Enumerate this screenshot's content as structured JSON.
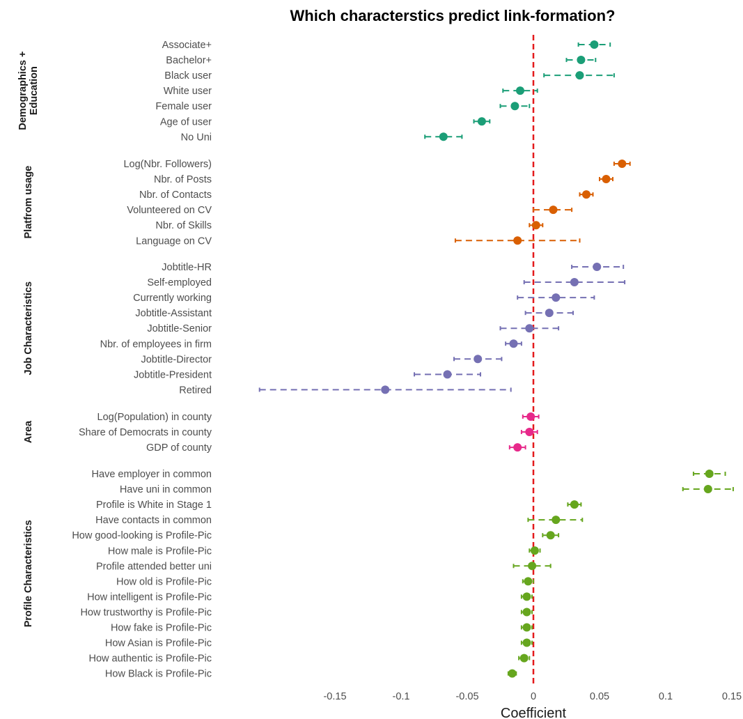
{
  "chart_data": {
    "type": "scatter",
    "subtype": "coefficient-plot-with-error-bars",
    "title": "Which characterstics predict link-formation?",
    "xlabel": "Coefficient",
    "xlim": [
      -0.2,
      0.16
    ],
    "x_ticks": [
      -0.15,
      -0.1,
      -0.05,
      0,
      0.05,
      0.1,
      0.15
    ],
    "x_tick_labels": [
      "-0.15",
      "-0.1",
      "-0.05",
      "0",
      "0.05",
      "0.1",
      "0.15"
    ],
    "reference_line": {
      "x": 0,
      "color": "#e31a1c",
      "style": "dashed"
    },
    "grid": false,
    "legend": "none",
    "groups": [
      {
        "name": "Demographics +\nEducation",
        "color": "#1b9e77",
        "items": [
          {
            "label": "Associate+",
            "estimate": 0.046,
            "ci": [
              0.034,
              0.058
            ]
          },
          {
            "label": "Bachelor+",
            "estimate": 0.036,
            "ci": [
              0.025,
              0.047
            ]
          },
          {
            "label": "Black user",
            "estimate": 0.035,
            "ci": [
              0.008,
              0.061
            ]
          },
          {
            "label": "White user",
            "estimate": -0.01,
            "ci": [
              -0.023,
              0.003
            ]
          },
          {
            "label": "Female user",
            "estimate": -0.014,
            "ci": [
              -0.025,
              -0.003
            ]
          },
          {
            "label": "Age of user",
            "estimate": -0.039,
            "ci": [
              -0.045,
              -0.033
            ]
          },
          {
            "label": "No Uni",
            "estimate": -0.068,
            "ci": [
              -0.082,
              -0.054
            ]
          }
        ]
      },
      {
        "name": "Platfrom usage",
        "color": "#d95f02",
        "items": [
          {
            "label": "Log(Nbr. Followers)",
            "estimate": 0.067,
            "ci": [
              0.061,
              0.073
            ]
          },
          {
            "label": "Nbr. of Posts",
            "estimate": 0.055,
            "ci": [
              0.05,
              0.06
            ]
          },
          {
            "label": "Nbr. of Contacts",
            "estimate": 0.04,
            "ci": [
              0.035,
              0.045
            ]
          },
          {
            "label": "Volunteered on CV",
            "estimate": 0.015,
            "ci": [
              0.0,
              0.029
            ]
          },
          {
            "label": "Nbr. of Skills",
            "estimate": 0.002,
            "ci": [
              -0.003,
              0.007
            ]
          },
          {
            "label": "Language on CV",
            "estimate": -0.012,
            "ci": [
              -0.059,
              0.035
            ]
          }
        ]
      },
      {
        "name": "Job Characteristics",
        "color": "#7570b3",
        "items": [
          {
            "label": "Jobtitle-HR",
            "estimate": 0.048,
            "ci": [
              0.029,
              0.068
            ]
          },
          {
            "label": "Self-employed",
            "estimate": 0.031,
            "ci": [
              -0.007,
              0.069
            ]
          },
          {
            "label": "Currently working",
            "estimate": 0.017,
            "ci": [
              -0.012,
              0.046
            ]
          },
          {
            "label": "Jobtitle-Assistant",
            "estimate": 0.012,
            "ci": [
              -0.006,
              0.03
            ]
          },
          {
            "label": "Jobtitle-Senior",
            "estimate": -0.003,
            "ci": [
              -0.025,
              0.019
            ]
          },
          {
            "label": "Nbr. of employees in firm",
            "estimate": -0.015,
            "ci": [
              -0.021,
              -0.009
            ]
          },
          {
            "label": "Jobtitle-Director",
            "estimate": -0.042,
            "ci": [
              -0.06,
              -0.024
            ]
          },
          {
            "label": "Jobtitle-President",
            "estimate": -0.065,
            "ci": [
              -0.09,
              -0.04
            ]
          },
          {
            "label": "Retired",
            "estimate": -0.112,
            "ci": [
              -0.207,
              -0.017
            ]
          }
        ]
      },
      {
        "name": "Area",
        "color": "#e7298a",
        "items": [
          {
            "label": "Log(Population) in county",
            "estimate": -0.002,
            "ci": [
              -0.008,
              0.004
            ]
          },
          {
            "label": "Share of Democrats in county",
            "estimate": -0.003,
            "ci": [
              -0.009,
              0.003
            ]
          },
          {
            "label": "GDP of county",
            "estimate": -0.012,
            "ci": [
              -0.018,
              -0.006
            ]
          }
        ]
      },
      {
        "name": "Profile Characteristics",
        "color": "#66a61e",
        "items": [
          {
            "label": "Have employer in common",
            "estimate": 0.133,
            "ci": [
              0.121,
              0.145
            ]
          },
          {
            "label": "Have uni in common",
            "estimate": 0.132,
            "ci": [
              0.113,
              0.151
            ]
          },
          {
            "label": "Profile is White in Stage 1",
            "estimate": 0.031,
            "ci": [
              0.026,
              0.036
            ]
          },
          {
            "label": "Have contacts in common",
            "estimate": 0.017,
            "ci": [
              -0.004,
              0.037
            ]
          },
          {
            "label": "How good-looking is Profile-Pic",
            "estimate": 0.013,
            "ci": [
              0.007,
              0.019
            ]
          },
          {
            "label": "How male is Profile-Pic",
            "estimate": 0.001,
            "ci": [
              -0.003,
              0.005
            ]
          },
          {
            "label": "Profile attended better uni",
            "estimate": -0.001,
            "ci": [
              -0.015,
              0.013
            ]
          },
          {
            "label": "How old is Profile-Pic",
            "estimate": -0.004,
            "ci": [
              -0.008,
              0.0
            ]
          },
          {
            "label": "How intelligent is Profile-Pic",
            "estimate": -0.005,
            "ci": [
              -0.009,
              -0.001
            ]
          },
          {
            "label": "How trustworthy is Profile-Pic",
            "estimate": -0.005,
            "ci": [
              -0.009,
              -0.001
            ]
          },
          {
            "label": "How fake is Profile-Pic",
            "estimate": -0.005,
            "ci": [
              -0.009,
              -0.001
            ]
          },
          {
            "label": "How Asian is Profile-Pic",
            "estimate": -0.005,
            "ci": [
              -0.009,
              -0.001
            ]
          },
          {
            "label": "How authentic is Profile-Pic",
            "estimate": -0.007,
            "ci": [
              -0.011,
              -0.003
            ]
          },
          {
            "label": "How Black is Profile-Pic",
            "estimate": -0.016,
            "ci": [
              -0.019,
              -0.013
            ]
          }
        ]
      }
    ]
  }
}
